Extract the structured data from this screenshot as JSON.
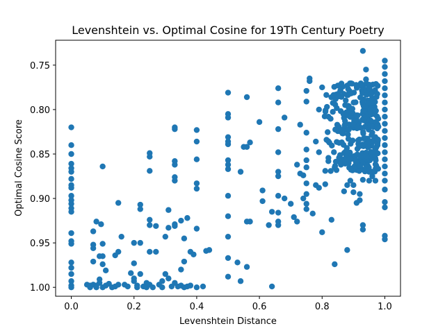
{
  "chart_data": {
    "type": "scatter",
    "title": "Levenshtein vs. Optimal Cosine for 19Th Century Poetry",
    "xlabel": "Levenshtein Distance",
    "ylabel": "Optimal Cosine Score",
    "xlim": [
      -0.05,
      1.05
    ],
    "ylim": [
      1.01,
      0.722
    ],
    "y_inverted": true,
    "grid": false,
    "marker_color": "#1f77b4",
    "x_ticks": [
      0.0,
      0.2,
      0.4,
      0.6,
      0.8,
      1.0
    ],
    "x_tick_labels": [
      "0.0",
      "0.2",
      "0.4",
      "0.6",
      "0.8",
      "1.0"
    ],
    "y_ticks": [
      0.75,
      0.8,
      0.85,
      0.9,
      0.95,
      1.0
    ],
    "y_tick_labels": [
      "0.75",
      "0.80",
      "0.85",
      "0.90",
      "0.95",
      "1.00"
    ],
    "points": [
      [
        0,
        0.82
      ],
      [
        0,
        0.84
      ],
      [
        0,
        0.85
      ],
      [
        0,
        0.861
      ],
      [
        0,
        0.866
      ],
      [
        0,
        0.87
      ],
      [
        0,
        0.878
      ],
      [
        0,
        0.885
      ],
      [
        0,
        0.888
      ],
      [
        0,
        0.897
      ],
      [
        0,
        0.902
      ],
      [
        0,
        0.906
      ],
      [
        0,
        0.911
      ],
      [
        0,
        0.915
      ],
      [
        0,
        0.939
      ],
      [
        0,
        0.948
      ],
      [
        0,
        0.951
      ],
      [
        0,
        0.972
      ],
      [
        0,
        0.978
      ],
      [
        0,
        0.985
      ],
      [
        0,
        0.993
      ],
      [
        0,
        0.998
      ],
      [
        0,
        1.0
      ],
      [
        0.05,
        0.997
      ],
      [
        0.06,
        1.0
      ],
      [
        0.06,
        0.998
      ],
      [
        0.07,
        0.952
      ],
      [
        0.07,
        0.956
      ],
      [
        0.07,
        0.937
      ],
      [
        0.07,
        0.971
      ],
      [
        0.07,
        0.997
      ],
      [
        0.08,
        0.926
      ],
      [
        0.08,
        0.998
      ],
      [
        0.08,
        1.0
      ],
      [
        0.09,
        0.991
      ],
      [
        0.09,
        0.965
      ],
      [
        0.09,
        0.995
      ],
      [
        0.095,
        0.929
      ],
      [
        0.1,
        0.864
      ],
      [
        0.1,
        0.951
      ],
      [
        0.1,
        0.965
      ],
      [
        0.1,
        0.974
      ],
      [
        0.1,
        1.0
      ],
      [
        0.11,
        0.981
      ],
      [
        0.11,
        0.998
      ],
      [
        0.12,
        0.996
      ],
      [
        0.13,
        1.0
      ],
      [
        0.14,
        0.999
      ],
      [
        0.14,
        0.964
      ],
      [
        0.15,
        0.905
      ],
      [
        0.15,
        0.96
      ],
      [
        0.15,
        0.997
      ],
      [
        0.16,
        0.943
      ],
      [
        0.17,
        0.997
      ],
      [
        0.18,
        0.999
      ],
      [
        0.19,
        0.984
      ],
      [
        0.2,
        0.95
      ],
      [
        0.2,
        0.973
      ],
      [
        0.2,
        0.99
      ],
      [
        0.2,
        0.993
      ],
      [
        0.21,
        0.998
      ],
      [
        0.21,
        1.0
      ],
      [
        0.22,
        0.907
      ],
      [
        0.22,
        0.912
      ],
      [
        0.22,
        0.95
      ],
      [
        0.22,
        0.985
      ],
      [
        0.23,
        0.999
      ],
      [
        0.24,
        0.995
      ],
      [
        0.24,
        1.0
      ],
      [
        0.25,
        0.849
      ],
      [
        0.25,
        0.853
      ],
      [
        0.25,
        0.869
      ],
      [
        0.25,
        0.924
      ],
      [
        0.25,
        0.93
      ],
      [
        0.25,
        0.96
      ],
      [
        0.25,
        0.997
      ],
      [
        0.26,
        1.0
      ],
      [
        0.27,
        0.96
      ],
      [
        0.27,
        0.931
      ],
      [
        0.28,
        0.997
      ],
      [
        0.29,
        0.993
      ],
      [
        0.29,
        1.0
      ],
      [
        0.3,
        0.943
      ],
      [
        0.3,
        0.985
      ],
      [
        0.31,
        0.913
      ],
      [
        0.31,
        0.933
      ],
      [
        0.31,
        0.99
      ],
      [
        0.32,
        0.999
      ],
      [
        0.33,
        0.82
      ],
      [
        0.33,
        0.822
      ],
      [
        0.33,
        0.858
      ],
      [
        0.33,
        0.862
      ],
      [
        0.33,
        0.876
      ],
      [
        0.33,
        0.88
      ],
      [
        0.33,
        0.929
      ],
      [
        0.33,
        0.931
      ],
      [
        0.33,
        0.995
      ],
      [
        0.34,
        0.999
      ],
      [
        0.35,
        0.925
      ],
      [
        0.35,
        0.98
      ],
      [
        0.35,
        0.998
      ],
      [
        0.36,
        0.945
      ],
      [
        0.36,
        0.971
      ],
      [
        0.36,
        1.0
      ],
      [
        0.37,
        0.922
      ],
      [
        0.37,
        0.999
      ],
      [
        0.38,
        0.998
      ],
      [
        0.38,
        0.96
      ],
      [
        0.39,
        0.963
      ],
      [
        0.4,
        0.823
      ],
      [
        0.4,
        0.836
      ],
      [
        0.4,
        0.856
      ],
      [
        0.4,
        0.883
      ],
      [
        0.4,
        0.889
      ],
      [
        0.4,
        0.934
      ],
      [
        0.4,
        1.0
      ],
      [
        0.42,
        0.999
      ],
      [
        0.43,
        0.959
      ],
      [
        0.44,
        0.958
      ],
      [
        0.5,
        0.781
      ],
      [
        0.5,
        0.805
      ],
      [
        0.5,
        0.809
      ],
      [
        0.5,
        0.831
      ],
      [
        0.5,
        0.836
      ],
      [
        0.5,
        0.839
      ],
      [
        0.5,
        0.857
      ],
      [
        0.5,
        0.862
      ],
      [
        0.5,
        0.867
      ],
      [
        0.5,
        0.897
      ],
      [
        0.5,
        0.92
      ],
      [
        0.5,
        0.943
      ],
      [
        0.5,
        0.967
      ],
      [
        0.5,
        0.988
      ],
      [
        0.53,
        0.972
      ],
      [
        0.54,
        0.87
      ],
      [
        0.54,
        0.993
      ],
      [
        0.55,
        0.842
      ],
      [
        0.56,
        0.786
      ],
      [
        0.56,
        0.842
      ],
      [
        0.56,
        0.926
      ],
      [
        0.56,
        0.977
      ],
      [
        0.57,
        0.837
      ],
      [
        0.57,
        0.926
      ],
      [
        0.6,
        0.814
      ],
      [
        0.61,
        0.891
      ],
      [
        0.61,
        0.903
      ],
      [
        0.63,
        0.93
      ],
      [
        0.64,
        0.915
      ],
      [
        0.64,
        0.999
      ],
      [
        0.66,
        0.776
      ],
      [
        0.66,
        0.792
      ],
      [
        0.66,
        0.822
      ],
      [
        0.66,
        0.848
      ],
      [
        0.66,
        0.87
      ],
      [
        0.66,
        0.875
      ],
      [
        0.66,
        0.897
      ],
      [
        0.66,
        0.916
      ],
      [
        0.66,
        0.926
      ],
      [
        0.66,
        0.93
      ],
      [
        0.68,
        0.809
      ],
      [
        0.68,
        0.9
      ],
      [
        0.7,
        0.906
      ],
      [
        0.71,
        0.921
      ],
      [
        0.72,
        0.926
      ],
      [
        0.72,
        0.862
      ],
      [
        0.73,
        0.817
      ],
      [
        0.73,
        0.872
      ],
      [
        0.74,
        0.874
      ],
      [
        0.74,
        0.9
      ],
      [
        0.75,
        0.779
      ],
      [
        0.75,
        0.791
      ],
      [
        0.75,
        0.826
      ],
      [
        0.75,
        0.845
      ],
      [
        0.75,
        0.857
      ],
      [
        0.75,
        0.865
      ],
      [
        0.75,
        0.883
      ],
      [
        0.75,
        0.895
      ],
      [
        0.75,
        0.906
      ],
      [
        0.75,
        0.912
      ],
      [
        0.76,
        0.765
      ],
      [
        0.76,
        0.768
      ],
      [
        0.77,
        0.917
      ],
      [
        0.78,
        0.885
      ],
      [
        0.78,
        0.836
      ],
      [
        0.79,
        0.848
      ],
      [
        0.79,
        0.8
      ],
      [
        0.79,
        0.888
      ],
      [
        0.8,
        0.775
      ],
      [
        0.8,
        0.938
      ],
      [
        0.81,
        0.869
      ],
      [
        0.81,
        0.884
      ],
      [
        0.82,
        0.858
      ],
      [
        0.82,
        0.808
      ],
      [
        0.83,
        0.924
      ],
      [
        0.84,
        0.974
      ],
      [
        0.84,
        0.865
      ],
      [
        0.85,
        0.773
      ],
      [
        0.86,
        0.862
      ],
      [
        0.87,
        0.856
      ],
      [
        0.87,
        0.892
      ],
      [
        0.88,
        0.885
      ],
      [
        0.88,
        0.958
      ],
      [
        0.88,
        0.773
      ],
      [
        0.89,
        0.88
      ],
      [
        0.9,
        0.893
      ],
      [
        0.9,
        0.885
      ],
      [
        0.91,
        0.868
      ],
      [
        0.91,
        0.905
      ],
      [
        0.92,
        0.895
      ],
      [
        0.92,
        0.902
      ],
      [
        0.93,
        0.879
      ],
      [
        0.93,
        0.93
      ],
      [
        0.93,
        0.935
      ],
      [
        0.93,
        0.734
      ],
      [
        0.94,
        0.755
      ],
      [
        0.94,
        0.766
      ],
      [
        0.95,
        0.87
      ],
      [
        0.95,
        0.88
      ],
      [
        0.96,
        0.875
      ],
      [
        0.96,
        0.87
      ],
      [
        0.97,
        0.855
      ],
      [
        0.97,
        0.88
      ],
      [
        1.0,
        0.745
      ],
      [
        1.0,
        0.752
      ],
      [
        1.0,
        0.76
      ],
      [
        1.0,
        0.768
      ],
      [
        1.0,
        0.776
      ],
      [
        1.0,
        0.784
      ],
      [
        1.0,
        0.792
      ],
      [
        1.0,
        0.8
      ],
      [
        1.0,
        0.808
      ],
      [
        1.0,
        0.816
      ],
      [
        1.0,
        0.824
      ],
      [
        1.0,
        0.832
      ],
      [
        1.0,
        0.84
      ],
      [
        1.0,
        0.848
      ],
      [
        1.0,
        0.856
      ],
      [
        1.0,
        0.864
      ],
      [
        1.0,
        0.872
      ],
      [
        1.0,
        0.88
      ],
      [
        1.0,
        0.89
      ],
      [
        1.0,
        0.904
      ],
      [
        1.0,
        0.91
      ],
      [
        1.0,
        0.942
      ],
      [
        1.0,
        0.946
      ]
    ],
    "dense_clusters": [
      {
        "x_range": [
          0.8,
          0.98
        ],
        "y_range": [
          0.77,
          0.87
        ],
        "count": 320
      }
    ]
  }
}
